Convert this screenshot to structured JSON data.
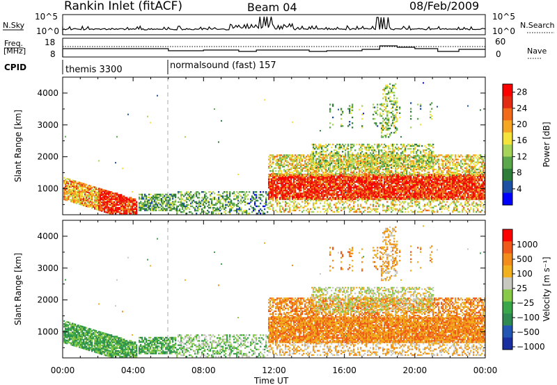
{
  "header": {
    "station": "Rankin Inlet (fitACF)",
    "beam": "Beam 04",
    "date": "08/Feb/2009"
  },
  "noise_panel": {
    "left_label": "N.Sky",
    "right_label": "N.Search",
    "left_ticks": [
      "10^5",
      "10^0"
    ],
    "right_ticks": [
      "10^5",
      "10^0"
    ]
  },
  "freq_panel": {
    "left_label_1": "Freq.",
    "left_label_2": "[MHz]",
    "right_label": "Nave",
    "left_ticks": [
      "18",
      "8"
    ],
    "right_ticks": [
      "60",
      "0"
    ]
  },
  "cpid": {
    "label": "CPID",
    "segments": [
      {
        "name": "themis 3300",
        "start_hour": 0
      },
      {
        "name": "normalsound (fast) 157",
        "start_hour": 6
      }
    ]
  },
  "colors": {
    "power": [
      "#0000ff",
      "#1d4fa3",
      "#2e7d3a",
      "#5aa84b",
      "#a8d35a",
      "#f4e33a",
      "#f5a623",
      "#f26b1a",
      "#e22b12",
      "#ff0000"
    ],
    "velocity": [
      "#1a2fa0",
      "#2356b3",
      "#2f8a52",
      "#3aa64a",
      "#88c94a",
      "#c8c8c0",
      "#f1b01e",
      "#f28c1a",
      "#ef5a1a",
      "#ff0000"
    ]
  },
  "chart_data": [
    {
      "type": "heatmap",
      "ylabel": "Slant Range [km]",
      "y_ticks": [
        "1000",
        "2000",
        "3000",
        "4000"
      ],
      "x_ticks": [
        "00:00",
        "04:00",
        "08:00",
        "12:00",
        "16:00",
        "20:00",
        "00:00"
      ],
      "xlim_hours": [
        0,
        24
      ],
      "ylim_km": [
        180,
        4500
      ],
      "colorbar": {
        "label": "Power [dB]",
        "ticks": [
          "4",
          "8",
          "12",
          "16",
          "20",
          "24",
          "28"
        ],
        "range": [
          0,
          30
        ]
      }
    },
    {
      "type": "heatmap",
      "ylabel": "Slant Range [km]",
      "y_ticks": [
        "1000",
        "2000",
        "3000",
        "4000"
      ],
      "x_ticks": [
        "00:00",
        "04:00",
        "08:00",
        "12:00",
        "16:00",
        "20:00",
        "00:00"
      ],
      "xlim_hours": [
        0,
        24
      ],
      "ylim_km": [
        180,
        4500
      ],
      "xlabel": "Time UT",
      "colorbar": {
        "label": "Velocity [m s⁻¹]",
        "ticks": [
          "1000",
          "500",
          "100",
          "25",
          "−25",
          "−100",
          "−500",
          "−1000"
        ]
      }
    }
  ]
}
